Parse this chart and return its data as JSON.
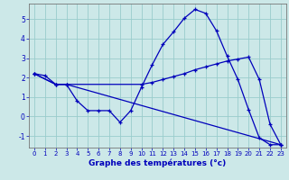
{
  "title": "",
  "xlabel": "Graphe des températures (°c)",
  "bg_color": "#cce8e8",
  "line_color": "#0000bb",
  "grid_color": "#99cccc",
  "ylim": [
    -1.6,
    5.8
  ],
  "xlim": [
    -0.5,
    23.5
  ],
  "yticks": [
    -1,
    0,
    1,
    2,
    3,
    4,
    5
  ],
  "xticks": [
    0,
    1,
    2,
    3,
    4,
    5,
    6,
    7,
    8,
    9,
    10,
    11,
    12,
    13,
    14,
    15,
    16,
    17,
    18,
    19,
    20,
    21,
    22,
    23
  ],
  "series": [
    {
      "x": [
        0,
        1,
        2,
        3,
        4,
        5,
        6,
        7,
        8,
        9,
        10,
        11,
        12,
        13,
        14,
        15,
        16,
        17,
        18,
        19,
        20,
        21,
        22,
        23
      ],
      "y": [
        2.2,
        2.1,
        1.65,
        1.65,
        0.8,
        0.3,
        0.3,
        0.3,
        -0.3,
        0.3,
        1.5,
        2.65,
        3.7,
        4.35,
        5.05,
        5.5,
        5.3,
        4.4,
        3.1,
        1.9,
        0.35,
        -1.1,
        -1.45,
        -1.45
      ]
    },
    {
      "x": [
        0,
        2,
        3,
        23
      ],
      "y": [
        2.2,
        1.65,
        1.65,
        -1.45
      ]
    },
    {
      "x": [
        0,
        2,
        3,
        10,
        11,
        12,
        13,
        14,
        15,
        16,
        17,
        18,
        19,
        20,
        21,
        22,
        23
      ],
      "y": [
        2.2,
        1.65,
        1.65,
        1.65,
        1.75,
        1.9,
        2.05,
        2.2,
        2.4,
        2.55,
        2.7,
        2.85,
        2.95,
        3.05,
        1.9,
        -0.4,
        -1.45
      ]
    }
  ]
}
